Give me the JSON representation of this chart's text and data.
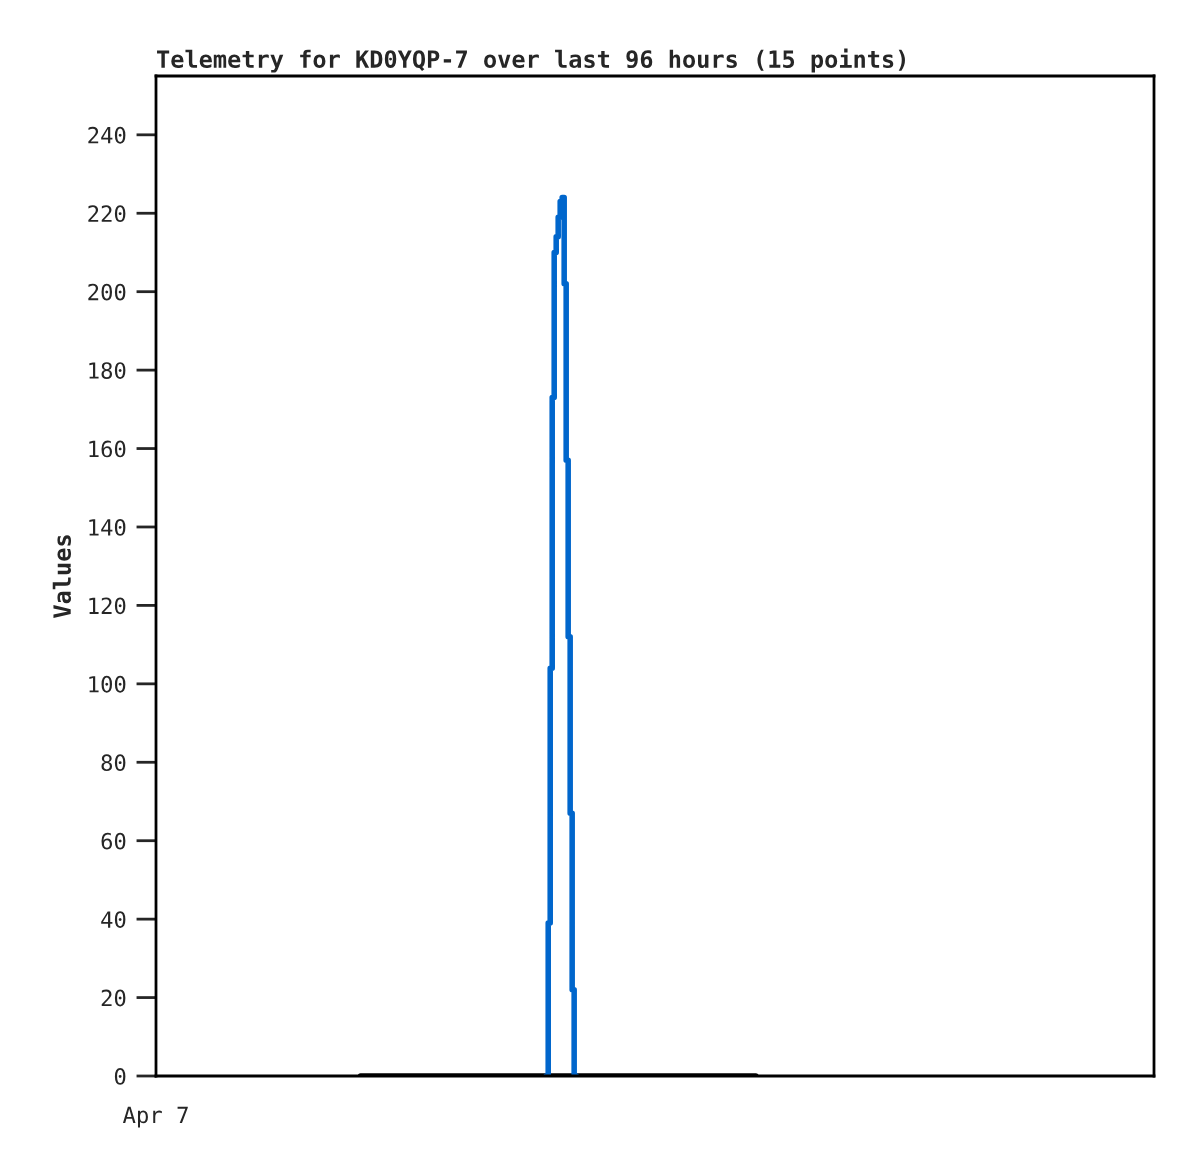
{
  "chart_data": {
    "type": "step",
    "title": "Telemetry for KD0YQP-7 over last 96 hours (15 points)",
    "ylabel": "Values",
    "annotations": [
      "Apr 7"
    ],
    "ylim": [
      0,
      255
    ],
    "yticks": [
      0,
      20,
      40,
      60,
      80,
      100,
      120,
      140,
      160,
      180,
      200,
      220,
      240
    ],
    "grid": false,
    "legend": false,
    "categories": [
      null,
      null,
      null,
      null,
      null,
      null,
      null,
      null,
      null,
      null,
      null,
      null,
      null,
      null,
      null,
      null,
      null,
      null,
      null,
      null,
      null,
      null,
      null,
      null,
      null,
      null,
      null,
      null,
      null,
      null,
      null,
      null,
      null,
      null,
      null,
      null,
      null,
      null,
      null,
      null,
      null,
      null,
      null,
      null,
      null,
      null,
      null,
      null,
      null,
      null,
      null,
      null,
      null,
      null,
      null,
      null,
      null,
      null,
      null,
      null,
      null,
      null,
      null,
      null,
      null,
      null,
      null,
      null,
      null,
      null,
      null,
      null,
      null,
      null,
      null,
      null,
      null,
      null,
      null,
      null,
      null,
      null,
      null,
      null,
      null,
      null,
      null,
      null,
      null,
      null,
      null,
      null,
      null,
      null,
      null,
      null,
      null,
      null,
      null,
      null,
      null,
      null,
      null,
      null,
      null,
      null,
      null,
      null,
      null,
      null,
      null,
      null,
      null,
      null,
      null,
      null,
      null,
      null,
      null,
      null,
      null,
      null,
      null,
      null,
      null,
      null,
      null,
      null,
      null,
      null,
      null,
      null,
      null,
      null,
      null,
      null,
      null,
      null,
      null,
      null,
      null,
      null,
      null,
      null,
      null,
      null,
      null,
      null,
      null,
      null,
      null,
      null,
      null,
      null,
      null,
      null,
      null,
      null,
      null,
      null,
      null,
      null,
      null,
      null,
      null,
      null,
      null,
      null,
      null,
      null,
      null,
      null,
      null,
      null,
      null,
      null,
      null,
      null,
      null,
      null,
      null,
      null,
      null,
      null,
      null,
      null,
      null,
      null,
      null,
      null,
      null,
      null,
      null,
      null,
      null,
      null,
      null,
      null,
      null,
      null,
      null,
      null,
      null,
      null,
      null,
      null,
      null,
      null,
      null,
      null,
      null,
      null,
      null,
      null,
      null,
      null,
      null,
      null,
      null,
      null,
      null,
      null,
      null,
      null,
      null,
      null,
      null,
      null,
      null,
      null,
      null,
      null,
      null,
      null,
      null,
      null,
      null,
      null,
      null,
      null,
      null,
      null,
      null,
      null,
      null,
      null,
      null,
      null,
      null,
      null,
      null,
      null,
      null,
      null,
      null,
      null,
      null,
      null,
      null,
      null,
      null,
      null,
      null,
      null,
      null,
      null,
      null,
      null,
      null,
      null,
      null,
      null,
      null,
      null,
      null,
      null,
      null,
      null,
      null,
      null,
      null,
      null,
      null,
      null,
      null,
      null,
      null,
      null,
      null,
      null,
      null,
      null,
      null,
      null,
      null,
      null,
      null,
      null,
      null,
      null,
      null,
      null,
      null,
      null,
      null,
      null,
      null,
      null,
      null,
      null,
      null,
      null,
      null,
      null,
      null,
      null,
      null,
      null,
      null,
      null,
      null,
      null,
      null,
      null,
      null,
      null,
      null,
      null,
      null,
      null,
      null,
      null,
      null,
      null,
      null,
      null,
      null,
      null,
      null,
      null,
      null,
      null,
      null,
      null,
      null,
      null,
      null,
      null,
      null,
      null,
      null,
      null,
      null,
      null,
      null,
      null,
      null,
      null,
      null,
      null,
      null,
      null,
      null,
      null,
      null,
      null,
      null,
      null,
      null,
      null,
      null,
      null,
      null,
      null,
      null,
      null,
      null,
      null,
      null,
      null,
      null,
      null,
      null,
      null,
      null,
      null,
      null,
      null,
      null,
      null,
      null,
      null,
      null,
      null,
      null,
      null,
      null,
      null,
      null,
      null,
      null,
      null,
      null,
      null,
      null,
      null,
      null,
      null,
      null,
      null,
      null,
      null,
      null,
      null,
      null,
      null,
      null,
      null,
      null,
      null,
      null,
      null,
      null,
      null,
      null,
      null,
      null,
      null,
      null,
      null,
      null,
      null,
      null,
      null,
      null,
      null,
      null,
      null,
      null,
      null,
      null,
      null,
      null,
      null,
      null,
      null,
      null,
      null,
      null,
      null,
      null,
      null,
      null,
      null,
      null,
      null,
      null,
      null,
      null,
      null,
      null,
      null,
      null,
      null,
      null,
      null,
      null,
      null,
      null,
      null,
      null,
      null,
      null,
      null,
      null,
      null,
      null,
      null,
      null,
      null,
      null,
      null,
      null,
      null,
      null,
      null,
      null,
      null,
      null,
      null,
      null,
      null,
      null,
      null,
      null,
      null,
      null,
      null,
      null,
      null
    ],
    "series": [
      {
        "type": "line",
        "color": "#000000",
        "values": [
          null,
          null,
          null,
          null,
          null,
          null,
          null,
          null,
          null,
          null,
          null,
          null,
          null,
          null,
          null,
          null,
          null,
          null,
          null,
          null,
          null,
          null,
          null,
          null,
          null,
          null,
          null,
          null,
          null,
          null,
          null,
          null,
          null,
          null,
          null,
          null,
          null,
          null,
          null,
          null,
          null,
          null,
          null,
          null,
          null,
          null,
          null,
          null,
          null,
          null,
          null,
          null,
          null,
          null,
          null,
          null,
          null,
          null,
          null,
          null,
          null,
          null,
          null,
          null,
          null,
          null,
          null,
          null,
          null,
          null,
          null,
          null,
          null,
          null,
          null,
          null,
          null,
          null,
          null,
          null,
          null,
          null,
          null,
          null,
          null,
          null,
          null,
          null,
          null,
          null,
          null,
          null,
          null,
          null,
          null,
          null,
          null,
          null,
          null,
          null,
          null,
          null,
          0,
          0,
          0,
          0,
          0,
          0,
          0,
          0,
          0,
          0,
          0,
          0,
          0,
          0,
          0,
          0,
          0,
          0,
          0,
          0,
          0,
          0,
          0,
          0,
          0,
          0,
          0,
          0,
          0,
          0,
          0,
          0,
          0,
          0,
          0,
          0,
          0,
          0,
          0,
          0,
          0,
          0,
          0,
          0,
          0,
          0,
          0,
          0,
          0,
          0,
          0,
          0,
          0,
          0,
          0,
          0,
          0,
          0,
          0,
          0,
          0,
          0,
          0,
          0,
          0,
          0,
          0,
          0,
          0,
          0,
          0,
          0,
          0,
          0,
          0,
          0,
          0,
          0,
          0,
          0,
          0,
          0,
          0,
          0,
          0,
          0,
          0,
          0,
          0,
          0,
          0,
          0,
          0,
          0,
          0,
          0,
          0,
          0,
          0,
          0,
          0,
          0,
          0,
          0,
          0,
          0,
          0,
          0,
          0,
          0,
          0,
          0,
          0,
          0,
          0,
          0,
          0,
          0,
          0,
          0,
          0,
          0,
          0,
          0,
          0,
          0,
          0,
          0,
          0,
          0,
          0,
          0,
          0,
          0,
          0,
          0,
          0,
          0,
          0,
          0,
          0,
          0,
          0,
          0,
          0,
          0,
          0,
          0,
          0,
          0,
          0,
          0,
          0,
          0,
          0,
          0,
          0,
          0,
          0,
          0,
          0,
          0,
          0,
          0,
          0,
          0,
          0,
          0,
          0,
          0,
          0,
          0,
          0,
          0,
          0,
          0,
          0,
          0,
          0,
          0,
          0,
          0,
          0,
          0,
          0,
          0,
          0,
          0,
          0,
          0,
          0,
          0,
          0,
          0,
          0,
          0,
          0,
          0,
          0,
          null,
          null,
          null,
          null,
          null,
          null,
          null,
          null,
          null,
          null,
          null,
          null,
          null,
          null,
          null,
          null,
          null,
          null,
          null,
          null,
          null,
          null,
          null,
          null,
          null,
          null,
          null,
          null,
          null,
          null,
          null,
          null,
          null,
          null,
          null,
          null,
          null,
          null,
          null,
          null,
          null,
          null,
          null,
          null,
          null,
          null,
          null,
          null,
          null,
          null,
          null,
          null,
          null,
          null,
          null,
          null,
          null,
          null,
          null,
          null,
          null,
          null,
          null,
          null,
          null,
          null,
          null,
          null,
          null,
          null,
          null,
          null,
          null,
          null,
          null,
          null,
          null,
          null,
          null,
          null,
          null,
          null,
          null,
          null,
          null,
          null,
          null,
          null,
          null,
          null,
          null,
          null,
          null,
          null,
          null,
          null,
          null,
          null,
          null,
          null,
          null,
          null,
          null,
          null,
          null,
          null,
          null,
          null,
          null,
          null,
          null,
          null,
          null,
          null,
          null,
          null,
          null,
          null,
          null,
          null,
          null,
          null,
          null,
          null,
          null,
          null,
          null,
          null,
          null,
          null,
          null,
          null,
          null,
          null,
          null,
          null,
          null,
          null,
          null,
          null,
          null,
          null,
          null,
          null,
          null,
          null,
          null,
          null,
          null,
          null,
          null,
          null,
          null,
          null,
          null,
          null,
          null,
          null,
          null,
          null,
          null,
          null,
          null,
          null,
          null,
          null,
          null,
          null,
          null,
          null,
          null,
          null,
          null,
          null,
          null,
          null,
          null,
          null,
          null,
          null,
          null,
          null,
          null,
          null,
          null,
          null,
          null,
          null,
          null,
          null,
          null,
          null,
          null,
          null,
          null,
          null,
          null,
          null,
          null
        ]
      },
      {
        "color": "#0066cc",
        "values": [
          null,
          null,
          null,
          null,
          null,
          null,
          null,
          null,
          null,
          null,
          null,
          null,
          null,
          null,
          null,
          null,
          null,
          null,
          null,
          null,
          null,
          null,
          null,
          null,
          null,
          null,
          null,
          null,
          null,
          null,
          null,
          null,
          null,
          null,
          null,
          null,
          null,
          null,
          null,
          null,
          null,
          null,
          null,
          null,
          null,
          null,
          null,
          null,
          null,
          null,
          null,
          null,
          null,
          null,
          null,
          null,
          null,
          null,
          null,
          null,
          null,
          null,
          null,
          null,
          null,
          null,
          null,
          null,
          null,
          null,
          null,
          null,
          null,
          null,
          null,
          null,
          null,
          null,
          null,
          null,
          null,
          null,
          null,
          null,
          null,
          null,
          null,
          null,
          null,
          null,
          null,
          null,
          null,
          null,
          null,
          null,
          null,
          null,
          null,
          null,
          null,
          null,
          null,
          null,
          null,
          null,
          null,
          null,
          null,
          null,
          null,
          null,
          null,
          null,
          null,
          null,
          null,
          null,
          null,
          null,
          null,
          null,
          null,
          null,
          null,
          null,
          null,
          null,
          null,
          null,
          null,
          null,
          null,
          null,
          null,
          null,
          null,
          null,
          null,
          null,
          null,
          null,
          null,
          null,
          null,
          null,
          null,
          null,
          null,
          null,
          null,
          null,
          null,
          null,
          null,
          null,
          null,
          null,
          null,
          null,
          null,
          null,
          null,
          null,
          null,
          null,
          null,
          null,
          null,
          null,
          null,
          null,
          null,
          null,
          null,
          null,
          null,
          null,
          null,
          null,
          null,
          null,
          null,
          null,
          null,
          null,
          null,
          null,
          null,
          null,
          null,
          null,
          null,
          null,
          null,
          0,
          39,
          104,
          173,
          210,
          214,
          219,
          223,
          224,
          202,
          157,
          112,
          67,
          22,
          0,
          null,
          null,
          null,
          null,
          null,
          null,
          null,
          null,
          null,
          null,
          null,
          null,
          null,
          null,
          null,
          null,
          null,
          null,
          null,
          null,
          null,
          null,
          null,
          null,
          null,
          null,
          null,
          null,
          null,
          null,
          null,
          null,
          null,
          null,
          null,
          null,
          null,
          null,
          null,
          null,
          null,
          null,
          null,
          null,
          null,
          null,
          null,
          null,
          null,
          null,
          null,
          null,
          null,
          null,
          null,
          null,
          null,
          null,
          null,
          null,
          null,
          null,
          null,
          null,
          null,
          null,
          null,
          null,
          null,
          null,
          null,
          null,
          null,
          null,
          null,
          null,
          null,
          null,
          null,
          null,
          null,
          null,
          null,
          null,
          null,
          null,
          null,
          null,
          null,
          null,
          null,
          null,
          null,
          null,
          null,
          null,
          null,
          null,
          null,
          null,
          null,
          null,
          null,
          null,
          null,
          null,
          null,
          null,
          null,
          null,
          null,
          null,
          null,
          null,
          null,
          null,
          null,
          null,
          null,
          null,
          null,
          null,
          null,
          null,
          null,
          null,
          null,
          null,
          null,
          null,
          null,
          null,
          null,
          null,
          null,
          null,
          null,
          null,
          null,
          null,
          null,
          null,
          null,
          null,
          null,
          null,
          null,
          null,
          null,
          null,
          null,
          null,
          null,
          null,
          null,
          null,
          null,
          null,
          null,
          null,
          null,
          null,
          null,
          null,
          null,
          null,
          null,
          null,
          null,
          null,
          null,
          null,
          null,
          null,
          null,
          null,
          null,
          null,
          null,
          null,
          null,
          null,
          null,
          null,
          null,
          null,
          null,
          null,
          null,
          null,
          null,
          null,
          null,
          null,
          null,
          null,
          null,
          null,
          null,
          null,
          null,
          null,
          null,
          null,
          null,
          null,
          null,
          null,
          null,
          null,
          null,
          null,
          null,
          null,
          null,
          null,
          null,
          null,
          null,
          null,
          null,
          null,
          null,
          null,
          null,
          null,
          null,
          null,
          null,
          null,
          null,
          null,
          null,
          null,
          null,
          null,
          null,
          null,
          null,
          null,
          null,
          null,
          null,
          null,
          null,
          null,
          null,
          null,
          null,
          null,
          null,
          null,
          null,
          null,
          null,
          null,
          null,
          null,
          null,
          null,
          null,
          null,
          null,
          null,
          null,
          null,
          null,
          null,
          null,
          null,
          null,
          null,
          null,
          null,
          null,
          null,
          null,
          null,
          null,
          null,
          null,
          null,
          null,
          null,
          null,
          null,
          null,
          null,
          null,
          null
        ]
      }
    ]
  }
}
